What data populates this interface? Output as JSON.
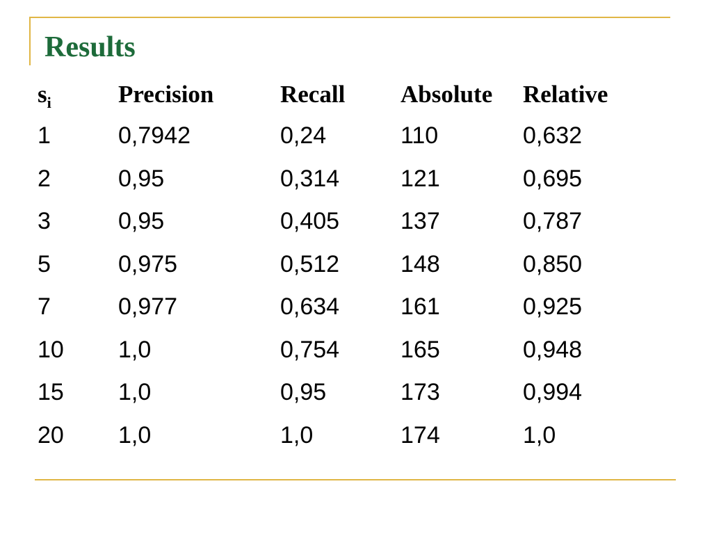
{
  "slide": {
    "title": "Results",
    "accent_color": "#e0b645",
    "title_color": "#1d6b3a"
  },
  "table": {
    "headers": [
      {
        "base": "s",
        "subscript": "i"
      },
      {
        "base": "Precision",
        "subscript": ""
      },
      {
        "base": "Recall",
        "subscript": ""
      },
      {
        "base": "Absolute",
        "subscript": ""
      },
      {
        "base": "Relative",
        "subscript": ""
      }
    ],
    "rows": [
      [
        "1",
        "0,7942",
        "0,24",
        "110",
        "0,632"
      ],
      [
        "2",
        "0,95",
        "0,314",
        "121",
        "0,695"
      ],
      [
        "3",
        "0,95",
        "0,405",
        "137",
        "0,787"
      ],
      [
        "5",
        "0,975",
        "0,512",
        "148",
        "0,850"
      ],
      [
        "7",
        "0,977",
        "0,634",
        "161",
        "0,925"
      ],
      [
        "10",
        "1,0",
        "0,754",
        "165",
        "0,948"
      ],
      [
        "15",
        "1,0",
        "0,95",
        "173",
        "0,994"
      ],
      [
        "20",
        "1,0",
        "1,0",
        "174",
        "1,0"
      ]
    ]
  }
}
